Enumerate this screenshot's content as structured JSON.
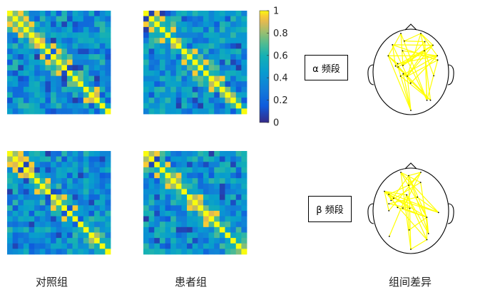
{
  "captions": {
    "control": "对照组",
    "patient": "患者组",
    "difference": "组间差异"
  },
  "bands": {
    "alpha": "α 频段",
    "beta": "β 频段"
  },
  "colorbar": {
    "ticks": [
      "1",
      "0.8",
      "0.6",
      "0.4",
      "0.2",
      "0"
    ],
    "range": [
      0,
      1
    ],
    "colormap": "parula"
  },
  "chart_data": [
    {
      "type": "heatmap",
      "panel": "control-alpha",
      "size": 19,
      "diagonal_value": 1.0,
      "hot_offdiagonal": [
        [
          0,
          2
        ],
        [
          1,
          3
        ],
        [
          2,
          4
        ],
        [
          6,
          8
        ],
        [
          7,
          9
        ],
        [
          9,
          11
        ],
        [
          14,
          16
        ]
      ],
      "ylim": [
        0,
        1
      ]
    },
    {
      "type": "heatmap",
      "panel": "patient-alpha",
      "size": 19,
      "diagonal_value": 1.0,
      "hot_offdiagonal": [
        [
          0,
          2
        ],
        [
          1,
          3
        ],
        [
          3,
          5
        ],
        [
          7,
          9
        ],
        [
          9,
          11
        ],
        [
          12,
          14
        ]
      ],
      "ylim": [
        0,
        1
      ]
    },
    {
      "type": "heatmap",
      "panel": "control-beta",
      "size": 19,
      "diagonal_value": 1.0,
      "hot_offdiagonal": [
        [
          0,
          2
        ],
        [
          1,
          3
        ],
        [
          2,
          4
        ],
        [
          5,
          7
        ],
        [
          8,
          10
        ],
        [
          10,
          12
        ]
      ],
      "ylim": [
        0,
        1
      ]
    },
    {
      "type": "heatmap",
      "panel": "patient-beta",
      "size": 19,
      "diagonal_value": 1.0,
      "hot_offdiagonal": [
        [
          0,
          2
        ],
        [
          2,
          4
        ],
        [
          4,
          6
        ],
        [
          8,
          10
        ],
        [
          11,
          13
        ]
      ],
      "ylim": [
        0,
        1
      ]
    }
  ],
  "colors": {
    "edge": "#ffff00",
    "head_outline": "#000000"
  }
}
